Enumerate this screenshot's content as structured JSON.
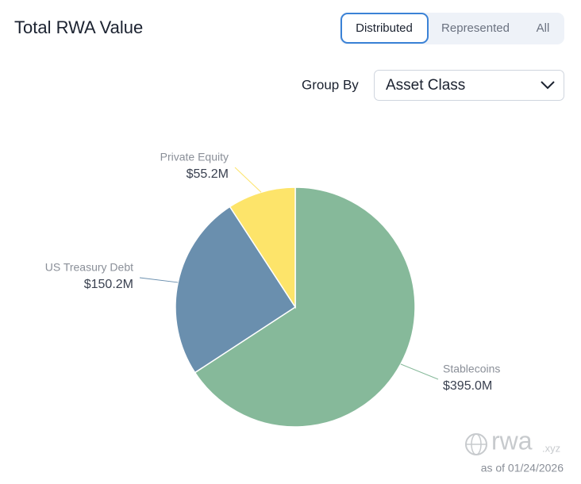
{
  "header": {
    "title": "Total RWA Value",
    "tabs": [
      "Distributed",
      "Represented",
      "All"
    ],
    "group_by_label": "Group By",
    "group_by_value": "Asset Class"
  },
  "chart_data": {
    "type": "pie",
    "categories": [
      "Stablecoins",
      "US Treasury Debt",
      "Private Equity"
    ],
    "values": [
      395.0,
      150.2,
      55.2
    ],
    "value_labels": [
      "$395.0M",
      "$150.2M",
      "$55.2M"
    ],
    "colors": [
      "#86b99a",
      "#6a8fae",
      "#fde46a"
    ]
  },
  "footer": {
    "brand": "rwa",
    "brand_suffix": ".xyz",
    "as_of": "as of 01/24/2026"
  }
}
